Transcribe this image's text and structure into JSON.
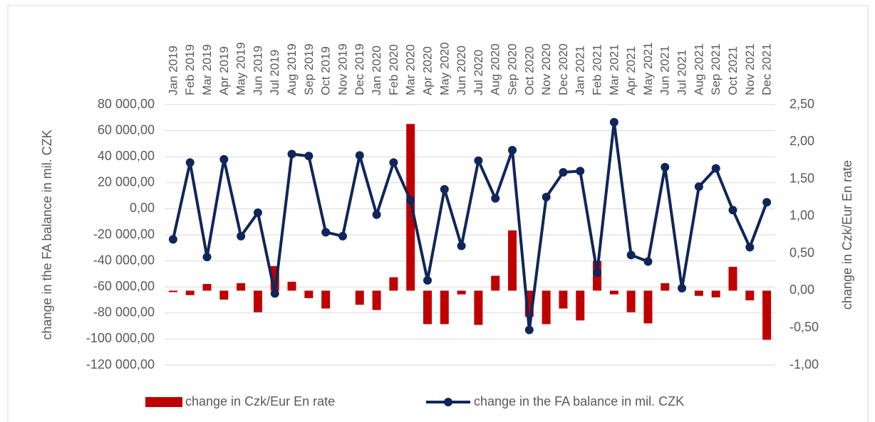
{
  "chart_data": {
    "type": "combo",
    "categories": [
      "Jan 2019",
      "Feb 2019",
      "Mar 2019",
      "Apr 2019",
      "May 2019",
      "Jun 2019",
      "Jul 2019",
      "Aug 2019",
      "Sep 2019",
      "Oct 2019",
      "Nov 2019",
      "Dec 2019",
      "Jan 2020",
      "Feb 2020",
      "Mar 2020",
      "Apr 2020",
      "May 2020",
      "Jun 2020",
      "Jul 2020",
      "Aug 2020",
      "Sep 2020",
      "Oct 2020",
      "Nov 2020",
      "Dec 2020",
      "Jan 2021",
      "Feb 2021",
      "Mar 2021",
      "Apr 2021",
      "May 2021",
      "Jun 2021",
      "Jul 2021",
      "Aug 2021",
      "Sep 2021",
      "Oct 2021",
      "Nov 2021",
      "Dec 2021"
    ],
    "y_label": "change in the FA balance in mil. CZK",
    "y2_label": "change in Czk/Eur En rate",
    "ylim": [
      -120000,
      80000
    ],
    "yticks": [
      {
        "value": -120000,
        "label": "-120 000,00"
      },
      {
        "value": -100000,
        "label": "-100 000,00"
      },
      {
        "value": -80000,
        "label": "-80 000,00"
      },
      {
        "value": -60000,
        "label": "-60 000,00"
      },
      {
        "value": -40000,
        "label": "-40 000,00"
      },
      {
        "value": -20000,
        "label": "-20 000,00"
      },
      {
        "value": 0,
        "label": "0,00"
      },
      {
        "value": 20000,
        "label": "20 000,00"
      },
      {
        "value": 40000,
        "label": "40 000,00"
      },
      {
        "value": 60000,
        "label": "60 000,00"
      },
      {
        "value": 80000,
        "label": "80 000,00"
      }
    ],
    "y2lim": [
      -1,
      2.5
    ],
    "y2ticks": [
      {
        "value": -1,
        "label": "-1,00"
      },
      {
        "value": -0.5,
        "label": "-0,50"
      },
      {
        "value": 0,
        "label": "0,00"
      },
      {
        "value": 0.5,
        "label": "0,50"
      },
      {
        "value": 1,
        "label": "1,00"
      },
      {
        "value": 1.5,
        "label": "1,50"
      },
      {
        "value": 2,
        "label": "2,00"
      },
      {
        "value": 2.5,
        "label": "2,50"
      }
    ],
    "grid": true,
    "legend": "bottom",
    "series": [
      {
        "name": "change in Czk/Eur En rate",
        "type": "bar",
        "axis": "y2",
        "color": "#c00000",
        "values": [
          -0.02,
          -0.06,
          0.09,
          -0.12,
          0.1,
          -0.29,
          0.33,
          0.12,
          -0.1,
          -0.24,
          0,
          -0.19,
          -0.26,
          0.18,
          2.24,
          -0.45,
          -0.45,
          -0.05,
          -0.46,
          0.2,
          0.81,
          -0.35,
          -0.45,
          -0.24,
          -0.4,
          0.4,
          -0.05,
          -0.29,
          -0.44,
          0.1,
          0,
          -0.07,
          -0.09,
          0.32,
          -0.13,
          -0.66
        ]
      },
      {
        "name": "change in the FA balance in mil. CZK",
        "type": "line",
        "color": "#10265a",
        "values": [
          -23500,
          35500,
          -37000,
          38000,
          -21000,
          -3000,
          -65000,
          42000,
          40500,
          -18000,
          -21000,
          41000,
          -4500,
          35500,
          6500,
          -55000,
          15000,
          -28500,
          37000,
          8000,
          45000,
          -93000,
          9000,
          28000,
          29000,
          -49000,
          66500,
          -35500,
          -40500,
          32000,
          -61000,
          17000,
          31000,
          -1000,
          -29500,
          5000
        ]
      }
    ]
  }
}
